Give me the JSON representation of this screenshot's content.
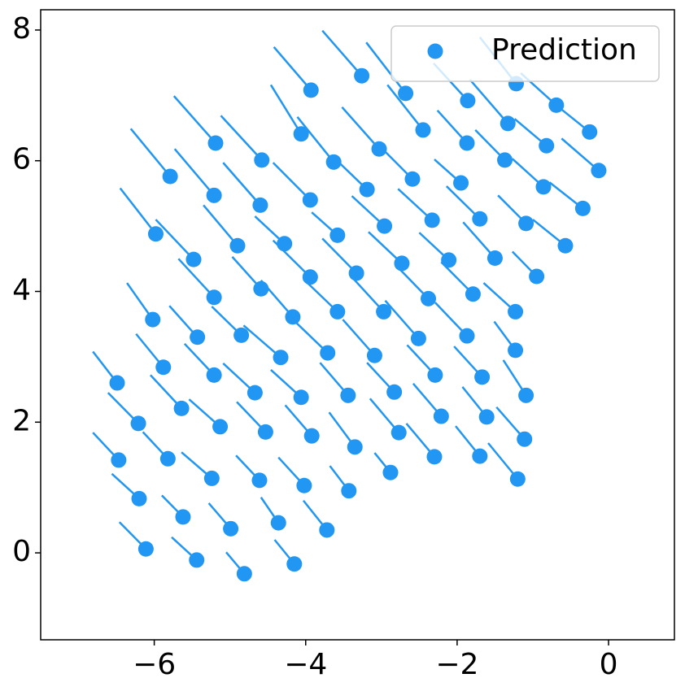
{
  "chart_data": {
    "type": "scatter",
    "xlim": [
      -7.5,
      0.87
    ],
    "ylim": [
      -1.33,
      8.31
    ],
    "xticks": [
      {
        "value": -6,
        "label": "−6"
      },
      {
        "value": -4,
        "label": "−4"
      },
      {
        "value": -2,
        "label": "−2"
      },
      0
    ],
    "yticks": [
      0,
      2,
      4,
      6,
      8
    ],
    "legend": "upper right",
    "series": [
      {
        "name": "Prediction",
        "color": "#2196f3",
        "x": [
          -6.49,
          -6.47,
          -6.21,
          -6.2,
          -6.11,
          -6.02,
          -5.98,
          -5.88,
          -5.82,
          -5.79,
          -5.64,
          -5.62,
          -5.48,
          -5.44,
          -5.43,
          -5.21,
          -5.21,
          -5.21,
          -5.19,
          -5.13,
          -5.24,
          -4.99,
          -4.9,
          -4.85,
          -4.81,
          -4.67,
          -4.61,
          -4.6,
          -4.59,
          -4.58,
          -4.53,
          -4.36,
          -4.33,
          -4.28,
          -4.15,
          -4.17,
          -4.06,
          -4.06,
          -4.02,
          -3.94,
          -3.94,
          -3.92,
          -3.93,
          -3.72,
          -3.71,
          -3.63,
          -3.58,
          -3.58,
          -3.44,
          -3.43,
          -3.35,
          -3.33,
          -3.26,
          -3.19,
          -3.09,
          -3.03,
          -2.97,
          -2.96,
          -2.88,
          -2.83,
          -2.77,
          -2.73,
          -2.68,
          -2.59,
          -2.51,
          -2.45,
          -2.38,
          -2.33,
          -2.29,
          -2.3,
          -2.21,
          -2.11,
          -1.95,
          -1.87,
          -1.87,
          -1.86,
          -1.79,
          -1.7,
          -1.7,
          -1.67,
          -1.61,
          -1.5,
          -1.37,
          -1.33,
          -1.23,
          -1.23,
          -1.22,
          -1.2,
          -1.11,
          -1.09,
          -1.09,
          -0.95,
          -0.86,
          -0.82,
          -0.69,
          -0.57,
          -0.34,
          -0.25,
          -0.13
        ],
        "y": [
          2.6,
          1.42,
          1.98,
          0.83,
          0.06,
          3.57,
          4.88,
          2.84,
          1.44,
          5.76,
          2.21,
          0.55,
          4.49,
          -0.11,
          3.3,
          2.72,
          3.91,
          5.47,
          6.27,
          1.93,
          1.14,
          0.37,
          4.7,
          3.33,
          -0.32,
          2.45,
          1.11,
          5.32,
          4.04,
          6.01,
          1.85,
          0.46,
          2.99,
          4.73,
          -0.17,
          3.61,
          2.38,
          6.41,
          1.03,
          4.22,
          5.4,
          1.79,
          7.08,
          0.35,
          3.06,
          5.98,
          4.86,
          3.69,
          2.41,
          0.95,
          1.62,
          4.28,
          7.3,
          5.56,
          3.02,
          6.18,
          3.69,
          5.0,
          1.23,
          2.46,
          1.84,
          4.43,
          7.03,
          5.72,
          3.28,
          6.47,
          3.89,
          5.09,
          2.72,
          1.47,
          2.09,
          4.48,
          5.66,
          3.32,
          6.27,
          6.92,
          3.96,
          1.48,
          5.11,
          2.69,
          2.08,
          4.51,
          6.01,
          6.57,
          3.69,
          3.1,
          7.18,
          1.13,
          1.74,
          2.41,
          5.04,
          4.23,
          5.6,
          6.23,
          6.85,
          4.7,
          5.27,
          6.44,
          5.85
        ]
      }
    ],
    "tails": {
      "x": [
        -6.81,
        -6.81,
        -6.61,
        -6.56,
        -6.46,
        -6.36,
        -6.45,
        -6.24,
        -6.15,
        -6.31,
        -6.05,
        -5.9,
        -5.98,
        -5.77,
        -5.8,
        -5.6,
        -5.68,
        -5.73,
        -5.74,
        -5.54,
        -5.64,
        -5.28,
        -5.35,
        -5.24,
        -5.05,
        -5.09,
        -4.92,
        -5.09,
        -4.97,
        -5.12,
        -4.91,
        -4.59,
        -4.82,
        -4.67,
        -4.41,
        -4.59,
        -4.46,
        -4.46,
        -4.36,
        -4.43,
        -4.43,
        -4.27,
        -4.42,
        -4.03,
        -4.16,
        -4.11,
        -3.92,
        -4.03,
        -3.81,
        -3.68,
        -3.69,
        -3.78,
        -3.78,
        -3.62,
        -3.51,
        -3.52,
        -3.39,
        -3.39,
        -3.09,
        -3.19,
        -3.15,
        -3.17,
        -3.2,
        -3.02,
        -2.95,
        -2.92,
        -2.8,
        -2.78,
        -2.66,
        -2.67,
        -2.58,
        -2.5,
        -2.3,
        -2.29,
        -2.26,
        -2.31,
        -2.21,
        -2.02,
        -2.14,
        -2.04,
        -1.93,
        -1.92,
        -1.76,
        -1.83,
        -1.65,
        -1.51,
        -1.7,
        -1.59,
        -1.48,
        -1.39,
        -1.46,
        -1.27,
        -1.27,
        -1.24,
        -1.16,
        -1.0,
        -0.78,
        -0.68,
        -0.62
      ],
      "y": [
        3.08,
        1.84,
        2.45,
        1.21,
        0.47,
        4.13,
        5.58,
        3.35,
        1.85,
        6.49,
        2.72,
        0.88,
        5.1,
        0.24,
        3.78,
        3.2,
        4.5,
        6.18,
        6.99,
        2.35,
        1.54,
        0.76,
        5.32,
        3.77,
        0.01,
        2.9,
        1.49,
        5.97,
        4.53,
        6.69,
        2.31,
        0.85,
        3.48,
        5.15,
        0.2,
        4.17,
        2.8,
        7.16,
        1.46,
        4.78,
        5.97,
        2.26,
        7.74,
        0.8,
        3.56,
        6.67,
        5.21,
        4.19,
        2.91,
        1.33,
        2.15,
        4.81,
        7.99,
        6.04,
        3.57,
        6.82,
        4.22,
        5.46,
        1.53,
        2.91,
        2.36,
        4.91,
        7.81,
        6.22,
        3.86,
        7.16,
        4.39,
        5.57,
        3.18,
        1.98,
        2.59,
        4.9,
        6.02,
        3.83,
        6.77,
        7.49,
        4.45,
        1.94,
        5.61,
        3.16,
        2.54,
        5.06,
        6.47,
        7.24,
        4.13,
        3.54,
        7.89,
        1.68,
        2.23,
        2.95,
        5.47,
        4.61,
        6.03,
        6.64,
        7.34,
        5.1,
        5.67,
        6.84,
        6.34
      ]
    }
  }
}
